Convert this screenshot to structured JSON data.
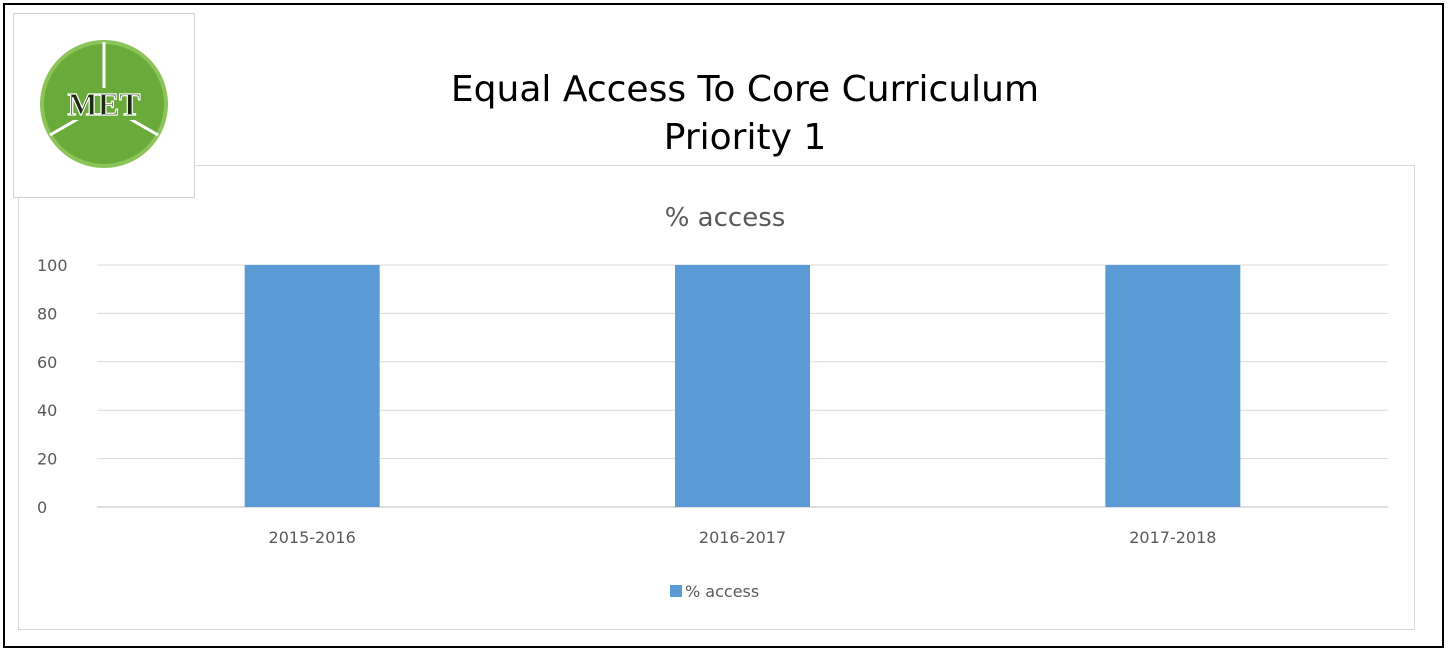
{
  "logo": {
    "text": "MET",
    "accent": "#6aaa3a",
    "ring": "#7dbb48"
  },
  "header": {
    "title_line1": "Equal Access To Core Curriculum",
    "title_line2": "Priority 1"
  },
  "chart_data": {
    "type": "bar",
    "title": "% access",
    "categories": [
      "2015-2016",
      "2016-2017",
      "2017-2018"
    ],
    "series": [
      {
        "name": "% access",
        "values": [
          100,
          100,
          100
        ],
        "color": "#5b9bd5"
      }
    ],
    "ylim": [
      0,
      100
    ],
    "yticks": [
      0,
      20,
      40,
      60,
      80,
      100
    ],
    "grid": true,
    "legend_position": "bottom"
  }
}
